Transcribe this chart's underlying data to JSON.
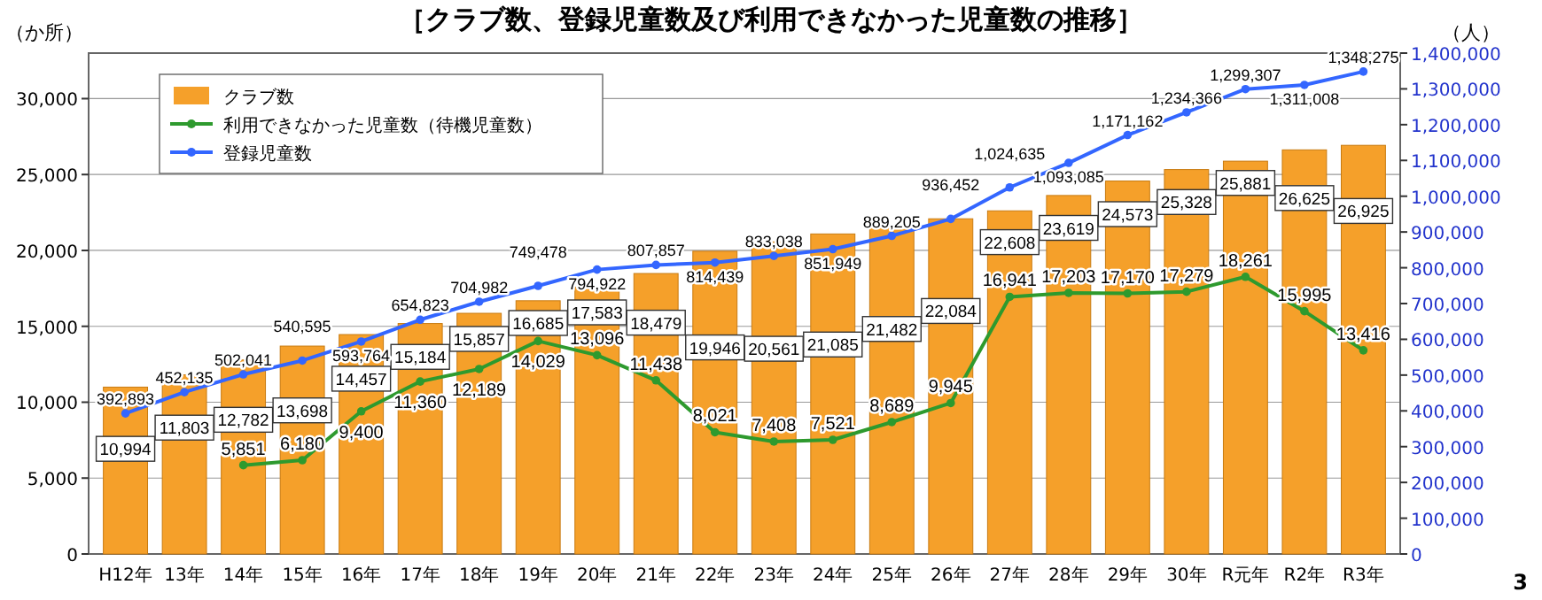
{
  "chart_data": {
    "type": "bar",
    "title": "［クラブ数、登録児童数及び利用できなかった児童数の推移］",
    "ylabel": "（か所）",
    "y2label": "（人）",
    "categories": [
      "H12年",
      "13年",
      "14年",
      "15年",
      "16年",
      "17年",
      "18年",
      "19年",
      "20年",
      "21年",
      "22年",
      "23年",
      "24年",
      "25年",
      "26年",
      "27年",
      "28年",
      "29年",
      "30年",
      "R元年",
      "R2年",
      "R3年"
    ],
    "series": [
      {
        "name": "クラブ数",
        "color": "#f5a02a",
        "values": [
          10994,
          11803,
          12782,
          13698,
          14457,
          15184,
          15857,
          16685,
          17583,
          18479,
          19946,
          20561,
          21085,
          21482,
          22084,
          22608,
          23619,
          24573,
          25328,
          25881,
          26625,
          26925
        ],
        "value_labels": [
          "10,994",
          "11,803",
          "12,782",
          "13,698",
          "14,457",
          "15,184",
          "15,857",
          "16,685",
          "17,583",
          "18,479",
          "19,946",
          "20,561",
          "21,085",
          "21,482",
          "22,084",
          "22,608",
          "23,619",
          "24,573",
          "25,328",
          "25,881",
          "26,625",
          "26,925"
        ]
      },
      {
        "name": "利用できなかった児童数（待機児童数）",
        "type": "line",
        "color": "#2e9a2e",
        "values": [
          null,
          null,
          5851,
          6180,
          9400,
          11360,
          12189,
          14029,
          13096,
          11438,
          8021,
          7408,
          7521,
          8689,
          9945,
          16941,
          17203,
          17170,
          17279,
          18261,
          15995,
          13416
        ],
        "value_labels": [
          null,
          null,
          "5,851",
          "6,180",
          "9,400",
          "11,360",
          "12,189",
          "14,029",
          "13,096",
          "11,438",
          "8,021",
          "7,408",
          "7,521",
          "8,689",
          "9,945",
          "16,941",
          "17,203",
          "17,170",
          "17,279",
          "18,261",
          "15,995",
          "13,416"
        ]
      },
      {
        "name": "登録児童数",
        "type": "line",
        "axis": "y2",
        "color": "#3366ff",
        "values": [
          392893,
          452135,
          502041,
          540595,
          593764,
          654823,
          704982,
          749478,
          794922,
          807857,
          814439,
          833038,
          851949,
          889205,
          936452,
          1024635,
          1093085,
          1171162,
          1234366,
          1299307,
          1311008,
          1348275
        ],
        "value_labels": [
          "392,893",
          "452,135",
          "502,041",
          "540,595",
          "593,764",
          "654,823",
          "704,982",
          "749,478",
          "794,922",
          "807,857",
          "814,439",
          "833,038",
          "851,949",
          "889,205",
          "936,452",
          "1,024,635",
          "1,093,085",
          "1,171,162",
          "1,234,366",
          "1,299,307",
          "1,311,008",
          "1,348,275"
        ]
      }
    ],
    "ylim": [
      0,
      33000
    ],
    "yticks": [
      {
        "value": 0,
        "label": "0"
      },
      {
        "value": 5000,
        "label": "5,000"
      },
      {
        "value": 10000,
        "label": "10,000"
      },
      {
        "value": 15000,
        "label": "15,000"
      },
      {
        "value": 20000,
        "label": "20,000"
      },
      {
        "value": 25000,
        "label": "25,000"
      },
      {
        "value": 30000,
        "label": "30,000"
      }
    ],
    "y2lim": [
      0,
      1400000
    ],
    "y2ticks": [
      {
        "value": 0,
        "label": "0"
      },
      {
        "value": 100000,
        "label": "100,000"
      },
      {
        "value": 200000,
        "label": "200,000"
      },
      {
        "value": 300000,
        "label": "300,000"
      },
      {
        "value": 400000,
        "label": "400,000"
      },
      {
        "value": 500000,
        "label": "500,000"
      },
      {
        "value": 600000,
        "label": "600,000"
      },
      {
        "value": 700000,
        "label": "700,000"
      },
      {
        "value": 800000,
        "label": "800,000"
      },
      {
        "value": 900000,
        "label": "900,000"
      },
      {
        "value": 1000000,
        "label": "1,000,000"
      },
      {
        "value": 1100000,
        "label": "1,100,000"
      },
      {
        "value": 1200000,
        "label": "1,200,000"
      },
      {
        "value": 1300000,
        "label": "1,300,000"
      },
      {
        "value": 1400000,
        "label": "1,400,000"
      }
    ],
    "grid": "y",
    "legend": "top left",
    "marker": "circle",
    "annotations": [
      "3"
    ]
  }
}
